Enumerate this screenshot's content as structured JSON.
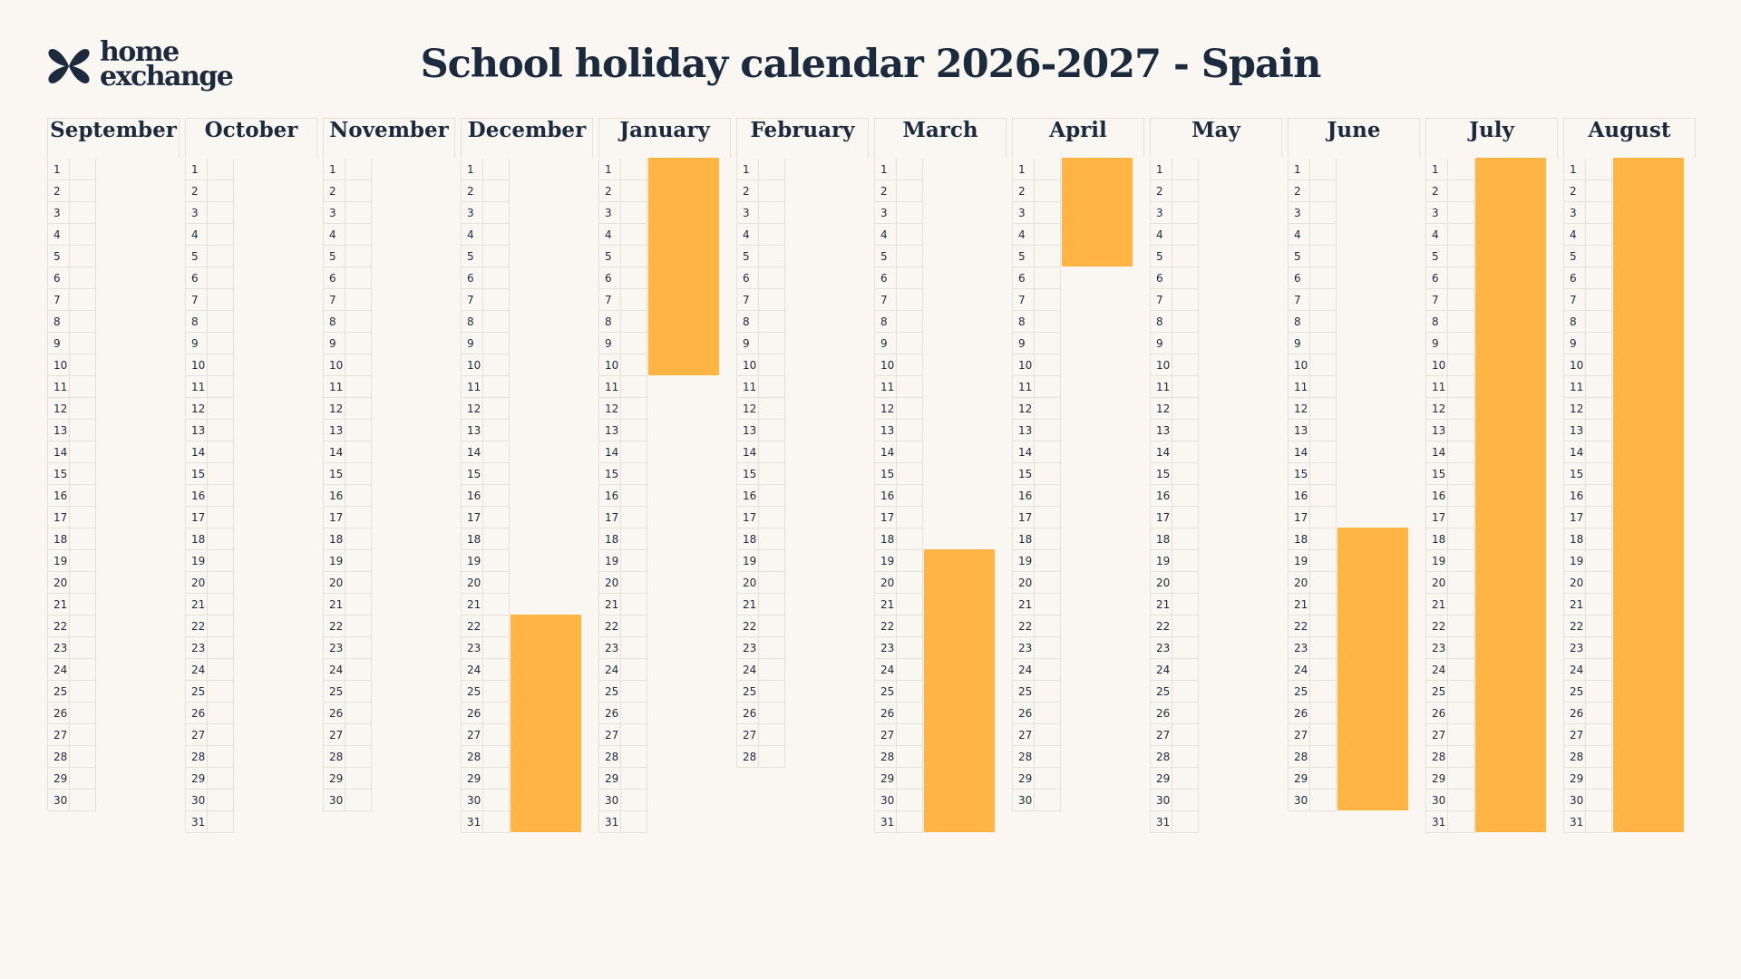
{
  "header": {
    "logo_line1": "home",
    "logo_line2": "exchange",
    "title": "School holiday calendar 2026-2027 - Spain"
  },
  "colors": {
    "background": "#faf7f2",
    "holiday": "#ffb443",
    "text": "#1b2a3d",
    "grid": "#e6e1d8"
  },
  "icons": {
    "logo": "butterfly-icon"
  },
  "months": [
    {
      "name": "September",
      "days": 30,
      "holidays": []
    },
    {
      "name": "October",
      "days": 31,
      "holidays": []
    },
    {
      "name": "November",
      "days": 30,
      "holidays": []
    },
    {
      "name": "December",
      "days": 31,
      "holidays": [
        [
          22,
          31
        ]
      ]
    },
    {
      "name": "January",
      "days": 31,
      "holidays": [
        [
          1,
          10
        ]
      ]
    },
    {
      "name": "February",
      "days": 28,
      "holidays": []
    },
    {
      "name": "March",
      "days": 31,
      "holidays": [
        [
          19,
          31
        ]
      ]
    },
    {
      "name": "April",
      "days": 30,
      "holidays": [
        [
          1,
          5
        ]
      ]
    },
    {
      "name": "May",
      "days": 31,
      "holidays": []
    },
    {
      "name": "June",
      "days": 30,
      "holidays": [
        [
          18,
          30
        ]
      ]
    },
    {
      "name": "July",
      "days": 31,
      "holidays": [
        [
          1,
          31
        ]
      ]
    },
    {
      "name": "August",
      "days": 31,
      "holidays": [
        [
          1,
          31
        ]
      ]
    }
  ]
}
